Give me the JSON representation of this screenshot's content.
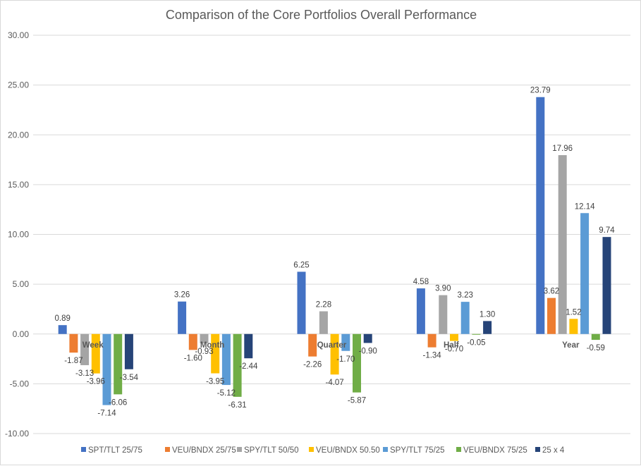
{
  "chart_data": {
    "type": "bar",
    "title": "Comparison of the Core Portfolios Overall Performance",
    "xlabel": "",
    "ylabel": "",
    "ylim": [
      -10,
      30
    ],
    "y_ticks": [
      "30.00",
      "25.00",
      "20.00",
      "15.00",
      "10.00",
      "5.00",
      "0.00",
      "-5.00",
      "-10.00"
    ],
    "grid": true,
    "legend_position": "bottom",
    "categories": [
      "Week",
      "Month",
      "Quarter",
      "Half",
      "Year"
    ],
    "series": [
      {
        "name": "SPT/TLT 25/75",
        "color": "#4472c4",
        "values": [
          0.89,
          3.26,
          6.25,
          4.58,
          23.79
        ],
        "labels": [
          "0.89",
          "3.26",
          "6.25",
          "4.58",
          "23.79"
        ]
      },
      {
        "name": "VEU/BNDX 25/75",
        "color": "#ed7d31",
        "values": [
          -1.87,
          -1.6,
          -2.26,
          -1.34,
          3.62
        ],
        "labels": [
          "-1.87",
          "-1.60",
          "-2.26",
          "-1.34",
          "3.62"
        ]
      },
      {
        "name": "SPY/TLT 50/50",
        "color": "#a5a5a5",
        "values": [
          -3.13,
          -0.93,
          2.28,
          3.9,
          17.96
        ],
        "labels": [
          "-3.13",
          "-0.93",
          "2.28",
          "3.90",
          "17.96"
        ]
      },
      {
        "name": "VEU/BNDX 50.50",
        "color": "#ffc000",
        "values": [
          -3.96,
          -3.95,
          -4.07,
          -0.7,
          1.52
        ],
        "labels": [
          "-3.96",
          "-3.95",
          "-4.07",
          "-0.70",
          "1.52"
        ]
      },
      {
        "name": "SPY/TLT 75/25",
        "color": "#5b9bd5",
        "values": [
          -7.14,
          -5.12,
          -1.7,
          3.23,
          12.14
        ],
        "labels": [
          "-7.14",
          "-5.12",
          "-1.70",
          "3.23",
          "12.14"
        ]
      },
      {
        "name": "VEU/BNDX 75/25",
        "color": "#70ad47",
        "values": [
          -6.06,
          -6.31,
          -5.87,
          -0.05,
          -0.59
        ],
        "labels": [
          "-6.06",
          "-6.31",
          "-5.87",
          "-0.05",
          "-0.59"
        ]
      },
      {
        "name": "25 x 4",
        "color": "#264478",
        "values": [
          -3.54,
          -2.44,
          -0.9,
          1.3,
          9.74
        ],
        "labels": [
          "-3.54",
          "-2.44",
          "-0.90",
          "1.30",
          "9.74"
        ]
      }
    ]
  }
}
